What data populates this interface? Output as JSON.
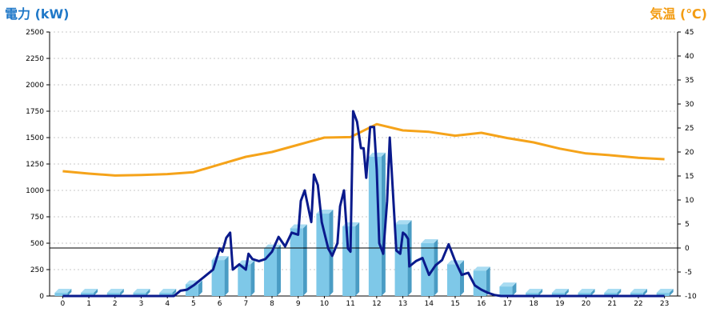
{
  "labels": {
    "left_axis_title": "電力 (kW)",
    "right_axis_title": "気温 (℃)"
  },
  "colors": {
    "bar_front": "#7ec8e8",
    "bar_side": "#4a9cc4",
    "bar_top": "#a9dcf2",
    "power_line": "#0a1a8c",
    "temp_line": "#f5a31a",
    "grid": "#c8c8c8",
    "zero_line": "#000000"
  },
  "chart_data": {
    "type": "bar",
    "categories": [
      "0",
      "1",
      "2",
      "3",
      "4",
      "5",
      "6",
      "7",
      "8",
      "9",
      "10",
      "11",
      "12",
      "13",
      "14",
      "15",
      "16",
      "17",
      "18",
      "19",
      "20",
      "21",
      "22",
      "23"
    ],
    "series": [
      {
        "type": "bar",
        "axis": "left",
        "values": [
          30,
          30,
          30,
          30,
          30,
          110,
          340,
          300,
          450,
          640,
          780,
          660,
          1320,
          680,
          500,
          300,
          240,
          90,
          30,
          30,
          30,
          30,
          30,
          30
        ]
      },
      {
        "type": "line",
        "axis": "left",
        "x": [
          0,
          4,
          4.25,
          4.5,
          4.75,
          5,
          5.25,
          5.5,
          5.75,
          6,
          6.1,
          6.25,
          6.4,
          6.5,
          6.75,
          7,
          7.1,
          7.25,
          7.5,
          7.75,
          8,
          8.25,
          8.5,
          8.75,
          9,
          9.1,
          9.25,
          9.5,
          9.6,
          9.75,
          9.9,
          10,
          10.15,
          10.3,
          10.5,
          10.6,
          10.75,
          10.9,
          11,
          11.1,
          11.25,
          11.4,
          11.5,
          11.6,
          11.75,
          11.9,
          12,
          12.1,
          12.25,
          12.4,
          12.5,
          12.75,
          12.9,
          13,
          13.1,
          13.2,
          13.25,
          13.5,
          13.75,
          14,
          14.25,
          14.5,
          14.75,
          15,
          15.25,
          15.5,
          15.75,
          16,
          16.25,
          16.5,
          16.75,
          17,
          17.25,
          17.5,
          17.75,
          18,
          23
        ],
        "values": [
          0,
          0,
          0,
          50,
          60,
          100,
          150,
          200,
          250,
          450,
          420,
          550,
          600,
          250,
          300,
          250,
          400,
          350,
          330,
          350,
          420,
          560,
          470,
          600,
          580,
          900,
          1000,
          700,
          1150,
          1050,
          700,
          600,
          450,
          380,
          500,
          850,
          1000,
          450,
          420,
          1750,
          1650,
          1400,
          1400,
          1120,
          1600,
          1600,
          1200,
          500,
          400,
          900,
          1500,
          430,
          400,
          600,
          580,
          540,
          280,
          330,
          360,
          200,
          290,
          340,
          490,
          330,
          200,
          220,
          100,
          60,
          30,
          10,
          0,
          0,
          0,
          0,
          0,
          0,
          0
        ]
      },
      {
        "type": "line",
        "axis": "right",
        "x": [
          0,
          1,
          2,
          3,
          4,
          5,
          6,
          7,
          8,
          9,
          10,
          11,
          12,
          13,
          14,
          15,
          16,
          17,
          18,
          19,
          20,
          21,
          22,
          23
        ],
        "values": [
          16,
          15.5,
          15.1,
          15.2,
          15.4,
          15.8,
          17.4,
          19.0,
          20.0,
          21.5,
          23.0,
          23.1,
          25.8,
          24.5,
          24.2,
          23.4,
          24.0,
          22.9,
          22.0,
          20.7,
          19.7,
          19.3,
          18.8,
          18.5
        ]
      }
    ],
    "y_left": {
      "min": 0,
      "max": 2500,
      "ticks": [
        0,
        250,
        500,
        750,
        1000,
        1250,
        1500,
        1750,
        2000,
        2250,
        2500
      ]
    },
    "y_right": {
      "min": -10,
      "max": 45,
      "ticks": [
        -10,
        -5,
        0,
        5,
        10,
        15,
        20,
        25,
        30,
        35,
        40,
        45
      ]
    },
    "grid": true
  }
}
